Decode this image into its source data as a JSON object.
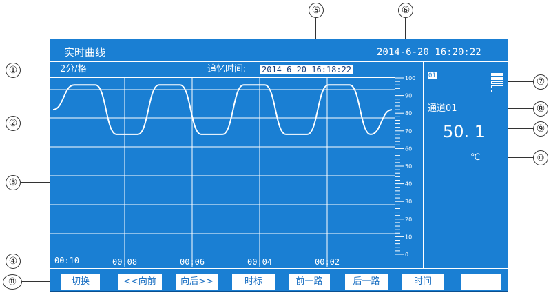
{
  "screen": {
    "title": "实时曲线",
    "datetime": "2014-6-20  16:20:22",
    "scale": "2分/格",
    "recall_label": "追忆时间:",
    "recall_time": "2014-6-20 16:18:22",
    "time_labels": [
      "00:10",
      "00:08",
      "00:06",
      "00:04",
      "00:02"
    ],
    "y_ticks": [
      "100",
      "90",
      "80",
      "70",
      "60",
      "50",
      "40",
      "30",
      "20",
      "10",
      "0"
    ],
    "channel_badge": "01",
    "channel_name": "通道01",
    "value": "50. 1",
    "unit": "℃"
  },
  "buttons": [
    "切换",
    "<<向前",
    "向后>>",
    "时标",
    "前一路",
    "后一路",
    "时间",
    ""
  ],
  "callouts": [
    "①",
    "②",
    "③",
    "④",
    "⑤",
    "⑥",
    "⑦",
    "⑧",
    "⑨",
    "⑩",
    "⑪"
  ],
  "colors": {
    "background": "#1a7fd3",
    "lines": "#ffffff",
    "bar": "#ffffff"
  },
  "chart_data": {
    "type": "line",
    "ylim": [
      0,
      100
    ],
    "series": [
      {
        "values": [
          82,
          96,
          96,
          68,
          68,
          96,
          96,
          68,
          68,
          96,
          96,
          68,
          68,
          96,
          96,
          68,
          82
        ]
      }
    ]
  }
}
